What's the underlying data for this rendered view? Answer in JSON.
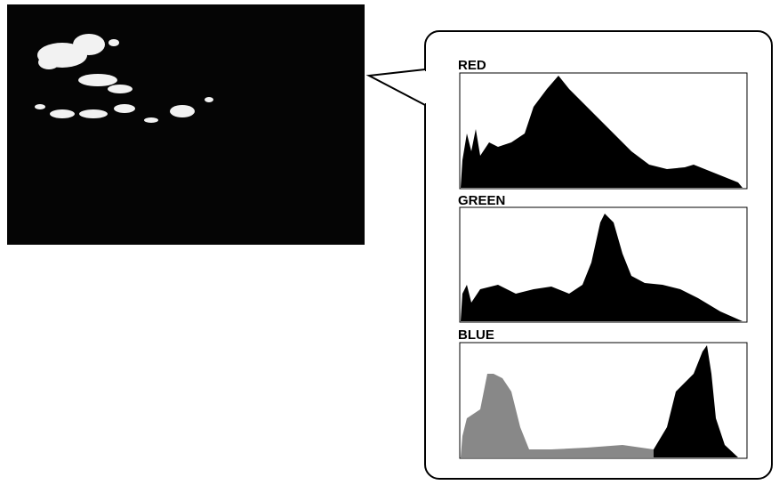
{
  "panels": [
    {
      "label": "RED"
    },
    {
      "label": "GREEN"
    },
    {
      "label": "BLUE"
    }
  ]
}
